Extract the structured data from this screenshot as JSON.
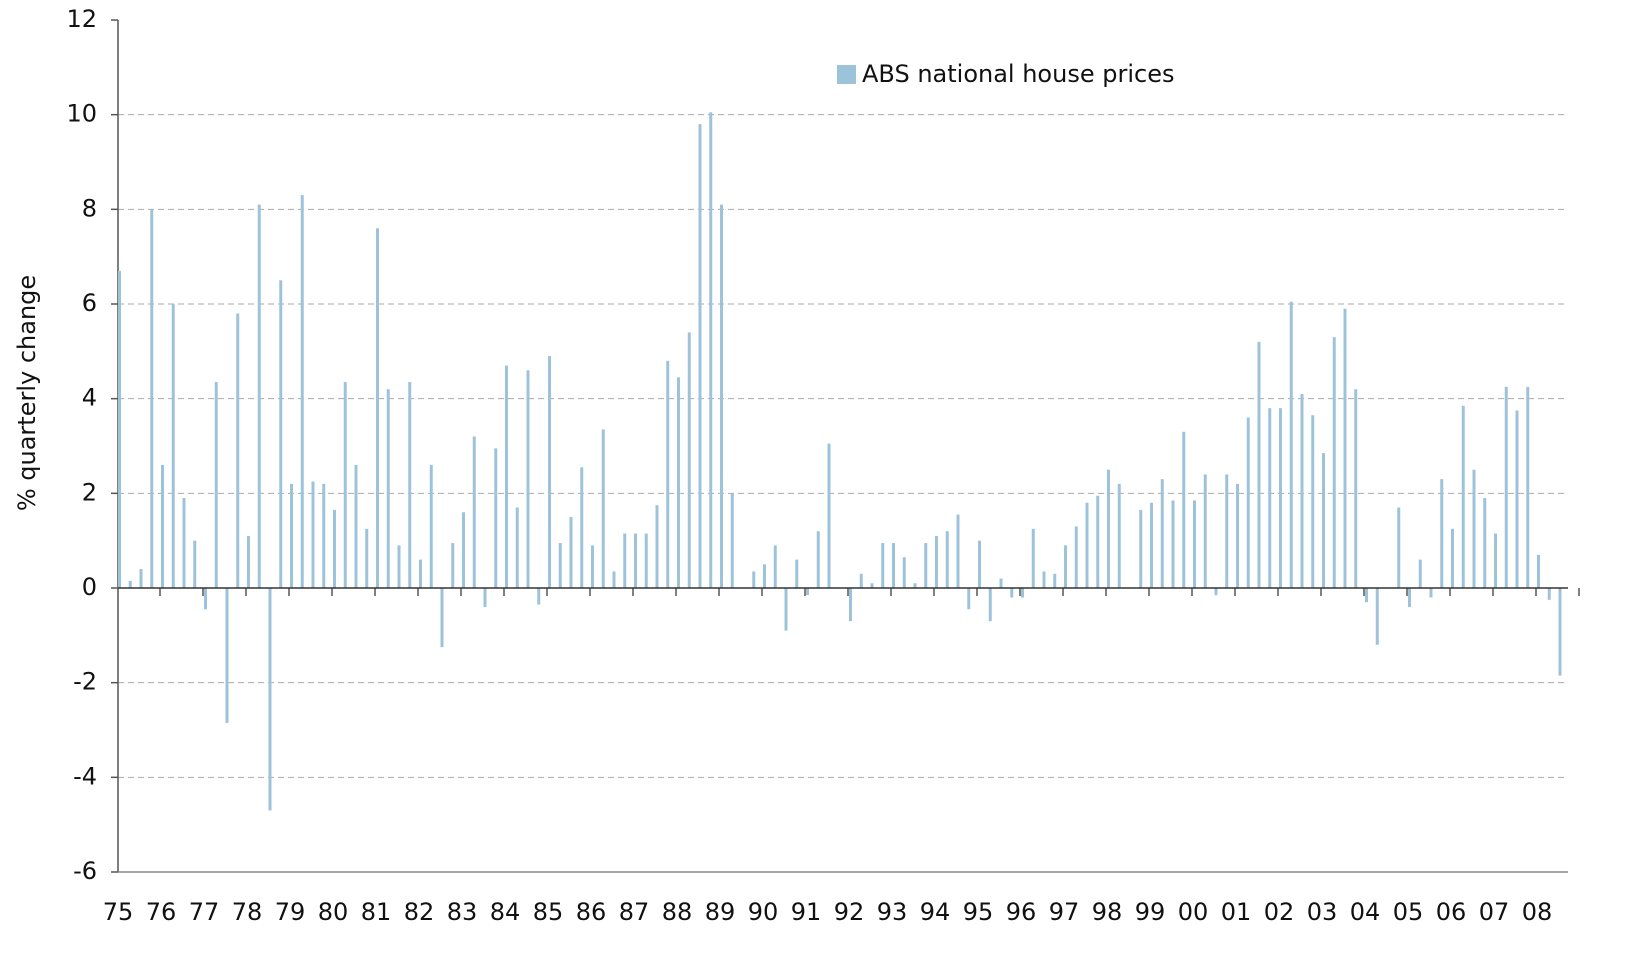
{
  "chart_data": {
    "type": "bar",
    "y_label": "% quarterly change",
    "legend_position": "top",
    "grid": true,
    "ylim": [
      -6,
      12
    ],
    "yticks": [
      -6,
      -4,
      -2,
      0,
      2,
      4,
      6,
      8,
      10,
      12
    ],
    "categories": [
      "75",
      null,
      null,
      null,
      "76",
      null,
      null,
      null,
      "77",
      null,
      null,
      null,
      "78",
      null,
      null,
      null,
      "79",
      null,
      null,
      null,
      "80",
      null,
      null,
      null,
      "81",
      null,
      null,
      null,
      "82",
      null,
      null,
      null,
      "83",
      null,
      null,
      null,
      "84",
      null,
      null,
      null,
      "85",
      null,
      null,
      null,
      "86",
      null,
      null,
      null,
      "87",
      null,
      null,
      null,
      "88",
      null,
      null,
      null,
      "89",
      null,
      null,
      null,
      "90",
      null,
      null,
      null,
      "91",
      null,
      null,
      null,
      "92",
      null,
      null,
      null,
      "93",
      null,
      null,
      null,
      "94",
      null,
      null,
      null,
      "95",
      null,
      null,
      null,
      "96",
      null,
      null,
      null,
      "97",
      null,
      null,
      null,
      "98",
      null,
      null,
      null,
      "99",
      null,
      null,
      null,
      "00",
      null,
      null,
      null,
      "01",
      null,
      null,
      null,
      "02",
      null,
      null,
      null,
      "03",
      null,
      null,
      null,
      "04",
      null,
      null,
      null,
      "05",
      null,
      null,
      null,
      "06",
      null,
      null,
      null,
      "07",
      null,
      null,
      null,
      "08",
      null,
      null
    ],
    "series": [
      {
        "name": "ABS national house prices",
        "color": "#9dc3db",
        "values": [
          6.7,
          0.15,
          0.4,
          8.0,
          2.6,
          6.0,
          1.9,
          1.0,
          -0.45,
          4.35,
          -2.85,
          5.8,
          1.1,
          8.1,
          -4.7,
          6.5,
          2.2,
          8.3,
          2.25,
          2.2,
          1.65,
          4.35,
          2.6,
          1.25,
          7.6,
          4.2,
          0.9,
          4.35,
          0.6,
          2.6,
          -1.25,
          0.95,
          1.6,
          3.2,
          -0.4,
          2.95,
          4.7,
          1.7,
          4.6,
          -0.35,
          4.9,
          0.95,
          1.5,
          2.55,
          0.9,
          3.35,
          0.35,
          1.15,
          1.15,
          1.15,
          1.75,
          4.8,
          4.45,
          5.4,
          9.8,
          10.05,
          8.1,
          2.0,
          0,
          0.35,
          0.5,
          0.9,
          -0.9,
          0.6,
          -0.15,
          1.2,
          3.05,
          0,
          -0.7,
          0.3,
          0.1,
          0.95,
          0.95,
          0.65,
          0.1,
          0.95,
          1.1,
          1.2,
          1.55,
          -0.45,
          1.0,
          -0.7,
          0.2,
          -0.2,
          -0.2,
          1.25,
          0.35,
          0.3,
          0.9,
          1.3,
          1.8,
          1.95,
          2.5,
          2.2,
          0,
          1.65,
          1.8,
          2.3,
          1.85,
          3.3,
          1.85,
          2.4,
          -0.15,
          2.4,
          2.2,
          3.6,
          5.2,
          3.8,
          3.8,
          6.05,
          4.1,
          3.65,
          2.85,
          5.3,
          5.9,
          4.2,
          -0.3,
          -1.2,
          0,
          1.7,
          -0.4,
          0.6,
          -0.2,
          2.3,
          1.25,
          3.85,
          2.5,
          1.9,
          1.15,
          4.25,
          3.75,
          4.25,
          0.7,
          -0.25,
          -1.85
        ]
      }
    ]
  }
}
